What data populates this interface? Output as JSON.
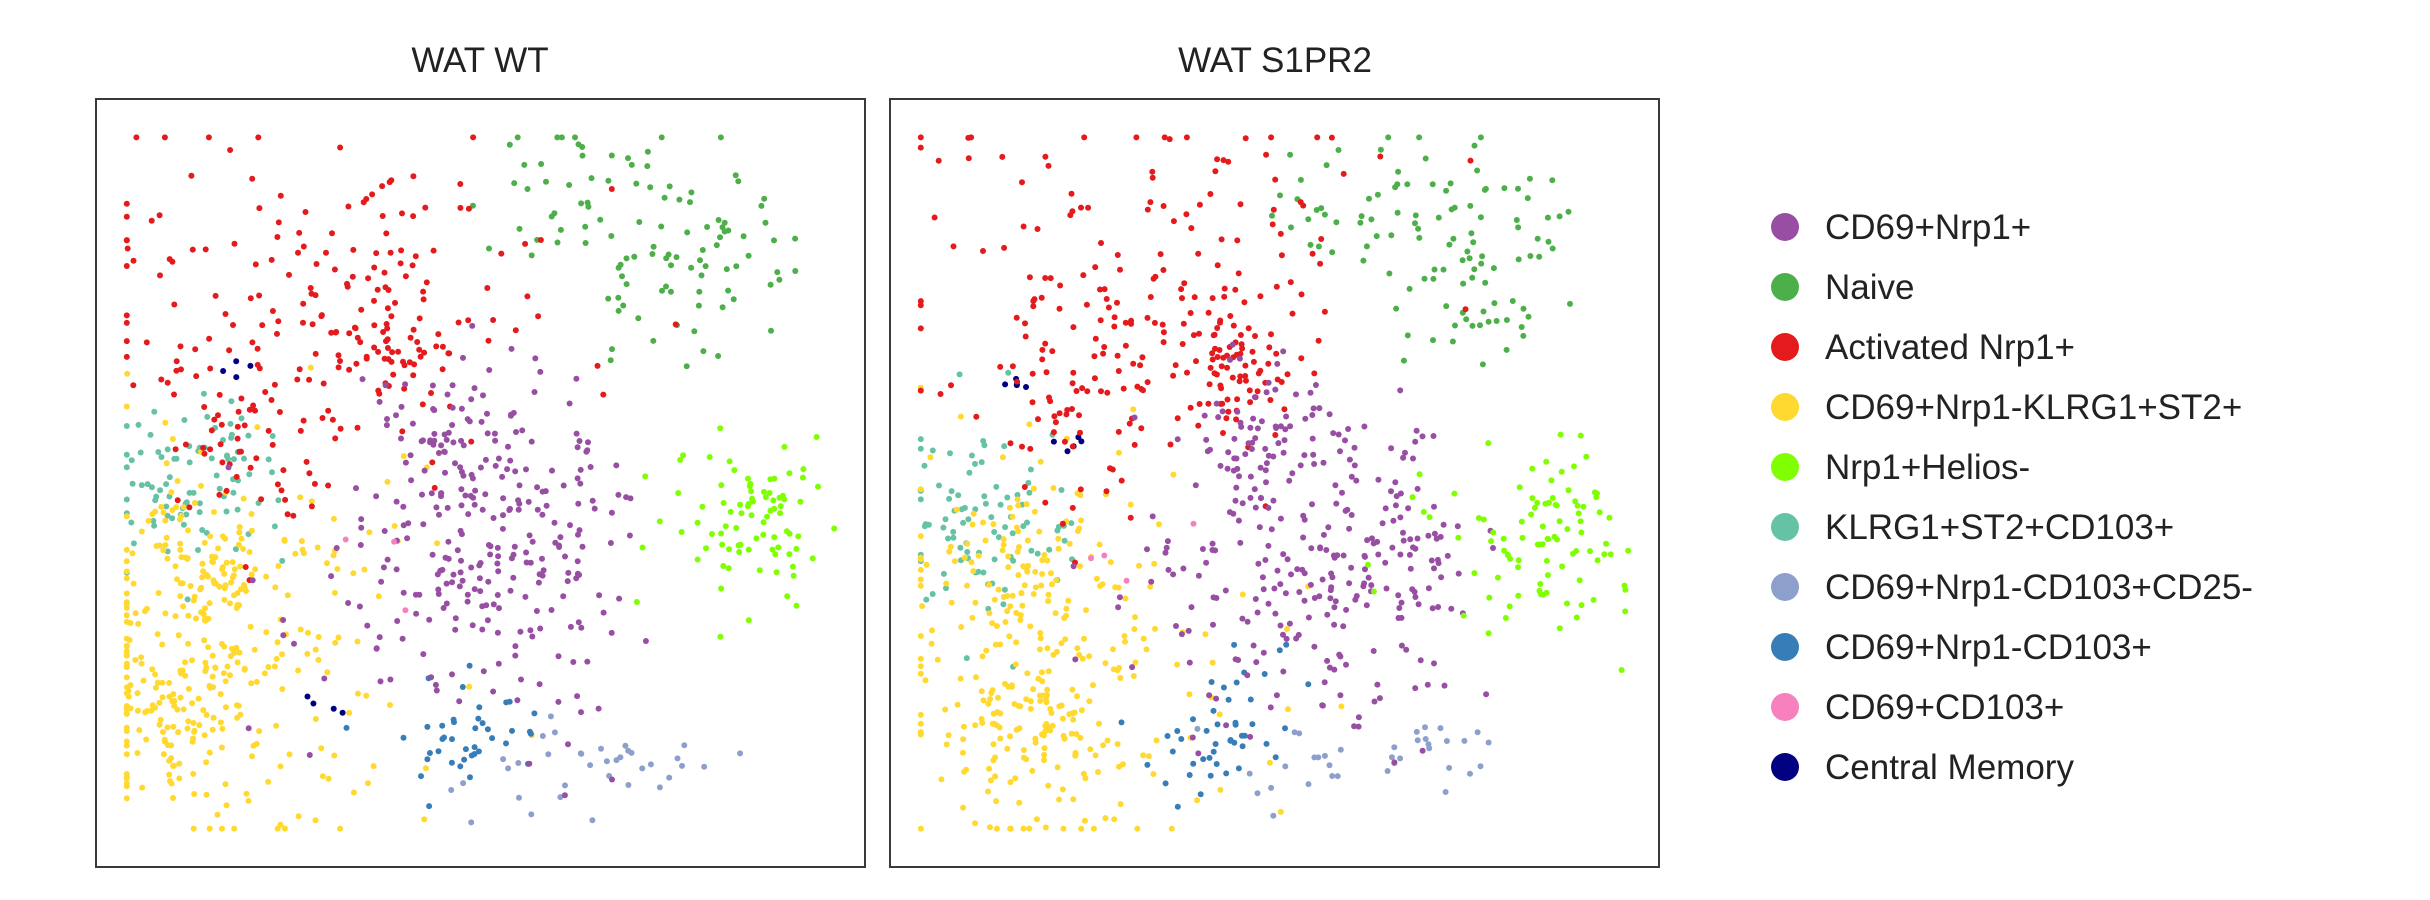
{
  "chart_data": {
    "type": "scatter",
    "panels": [
      {
        "title": "WAT WT",
        "clusters": [
          {
            "category": "CD69+Nrp1+",
            "count": 300,
            "blobs": [
              [
                0.47,
                0.43,
                0.05,
                0.05,
                1
              ],
              [
                0.5,
                0.57,
                0.07,
                0.09,
                2
              ],
              [
                0.42,
                0.65,
                0.1,
                0.1,
                1
              ],
              [
                0.62,
                0.62,
                0.05,
                0.11,
                1
              ]
            ]
          },
          {
            "category": "Naive",
            "count": 110,
            "blobs": [
              [
                0.62,
                0.12,
                0.07,
                0.05,
                1
              ],
              [
                0.76,
                0.26,
                0.07,
                0.05,
                1
              ],
              [
                0.78,
                0.15,
                0.07,
                0.06,
                1
              ]
            ]
          },
          {
            "category": "Activated Nrp1+",
            "count": 260,
            "blobs": [
              [
                0.3,
                0.26,
                0.16,
                0.12,
                2
              ],
              [
                0.21,
                0.42,
                0.07,
                0.08,
                1
              ],
              [
                0.38,
                0.32,
                0.05,
                0.04,
                1
              ]
            ]
          },
          {
            "category": "CD69+Nrp1-KLRG1+ST2+",
            "count": 380,
            "blobs": [
              [
                0.18,
                0.72,
                0.12,
                0.14,
                3
              ],
              [
                0.14,
                0.62,
                0.05,
                0.05,
                1
              ],
              [
                0.1,
                0.8,
                0.05,
                0.05,
                1
              ]
            ]
          },
          {
            "category": "Nrp1+Helios-",
            "count": 85,
            "blobs": [
              [
                0.82,
                0.56,
                0.06,
                0.06,
                1
              ],
              [
                0.88,
                0.53,
                0.04,
                0.05,
                1
              ]
            ]
          },
          {
            "category": "KLRG1+ST2+CD103+",
            "count": 90,
            "blobs": [
              [
                0.12,
                0.5,
                0.06,
                0.06,
                1
              ]
            ]
          },
          {
            "category": "CD69+Nrp1-CD103+CD25-",
            "count": 35,
            "blobs": [
              [
                0.58,
                0.87,
                0.05,
                0.04,
                1
              ],
              [
                0.72,
                0.87,
                0.04,
                0.02,
                1
              ]
            ]
          },
          {
            "category": "CD69+Nrp1-CD103+",
            "count": 40,
            "blobs": [
              [
                0.46,
                0.83,
                0.04,
                0.03,
                1
              ],
              [
                0.5,
                0.82,
                0.06,
                0.04,
                1
              ]
            ]
          },
          {
            "category": "CD69+CD103+",
            "count": 3,
            "blobs": [
              [
                0.35,
                0.6,
                0.05,
                0.05,
                1
              ]
            ]
          },
          {
            "category": "Central Memory",
            "count": 8,
            "blobs": [
              [
                0.18,
                0.36,
                0.02,
                0.01,
                1
              ],
              [
                0.3,
                0.8,
                0.02,
                0.02,
                1
              ]
            ]
          }
        ]
      },
      {
        "title": "WAT S1PR2",
        "clusters": [
          {
            "category": "CD69+Nrp1+",
            "count": 320,
            "blobs": [
              [
                0.49,
                0.43,
                0.05,
                0.05,
                1
              ],
              [
                0.56,
                0.6,
                0.07,
                0.09,
                2
              ],
              [
                0.45,
                0.66,
                0.1,
                0.1,
                1
              ],
              [
                0.68,
                0.62,
                0.04,
                0.1,
                1
              ]
            ]
          },
          {
            "category": "Naive",
            "count": 110,
            "blobs": [
              [
                0.62,
                0.12,
                0.07,
                0.05,
                1
              ],
              [
                0.76,
                0.26,
                0.07,
                0.05,
                1
              ],
              [
                0.78,
                0.15,
                0.07,
                0.06,
                1
              ]
            ]
          },
          {
            "category": "Activated Nrp1+",
            "count": 280,
            "blobs": [
              [
                0.33,
                0.22,
                0.16,
                0.12,
                2
              ],
              [
                0.25,
                0.38,
                0.07,
                0.08,
                1
              ],
              [
                0.44,
                0.34,
                0.05,
                0.04,
                1
              ]
            ]
          },
          {
            "category": "CD69+Nrp1-KLRG1+ST2+",
            "count": 340,
            "blobs": [
              [
                0.22,
                0.74,
                0.12,
                0.13,
                3
              ],
              [
                0.16,
                0.62,
                0.05,
                0.05,
                1
              ],
              [
                0.16,
                0.82,
                0.05,
                0.05,
                1
              ]
            ]
          },
          {
            "category": "Nrp1+Helios-",
            "count": 95,
            "blobs": [
              [
                0.82,
                0.6,
                0.06,
                0.07,
                1
              ],
              [
                0.88,
                0.55,
                0.04,
                0.05,
                1
              ]
            ]
          },
          {
            "category": "KLRG1+ST2+CD103+",
            "count": 90,
            "blobs": [
              [
                0.12,
                0.54,
                0.06,
                0.06,
                1
              ]
            ]
          },
          {
            "category": "CD69+Nrp1-CD103+CD25-",
            "count": 35,
            "blobs": [
              [
                0.56,
                0.86,
                0.05,
                0.04,
                1
              ],
              [
                0.7,
                0.85,
                0.04,
                0.03,
                1
              ]
            ]
          },
          {
            "category": "CD69+Nrp1-CD103+",
            "count": 45,
            "blobs": [
              [
                0.45,
                0.79,
                0.04,
                0.05,
                1
              ],
              [
                0.4,
                0.86,
                0.05,
                0.03,
                1
              ]
            ]
          },
          {
            "category": "CD69+CD103+",
            "count": 4,
            "blobs": [
              [
                0.32,
                0.62,
                0.06,
                0.06,
                1
              ]
            ]
          },
          {
            "category": "Central Memory",
            "count": 10,
            "blobs": [
              [
                0.17,
                0.37,
                0.02,
                0.01,
                1
              ],
              [
                0.24,
                0.45,
                0.02,
                0.01,
                1
              ]
            ]
          }
        ]
      }
    ],
    "legend": {
      "placement": "right",
      "items": [
        {
          "label": "CD69+Nrp1+",
          "color": "#984ea3"
        },
        {
          "label": "Naive",
          "color": "#4daf4a"
        },
        {
          "label": "Activated Nrp1+",
          "color": "#e41a1c"
        },
        {
          "label": "CD69+Nrp1-KLRG1+ST2+",
          "color": "#ffd92f"
        },
        {
          "label": "Nrp1+Helios-",
          "color": "#7fff00"
        },
        {
          "label": "KLRG1+ST2+CD103+",
          "color": "#66c2a5"
        },
        {
          "label": "CD69+Nrp1-CD103+CD25-",
          "color": "#8da0cb"
        },
        {
          "label": "CD69+Nrp1-CD103+",
          "color": "#377eb8"
        },
        {
          "label": "CD69+CD103+",
          "color": "#f781bf"
        },
        {
          "label": "Central Memory",
          "color": "#000080"
        }
      ]
    },
    "axes": {
      "visible": false,
      "grid": false
    }
  }
}
